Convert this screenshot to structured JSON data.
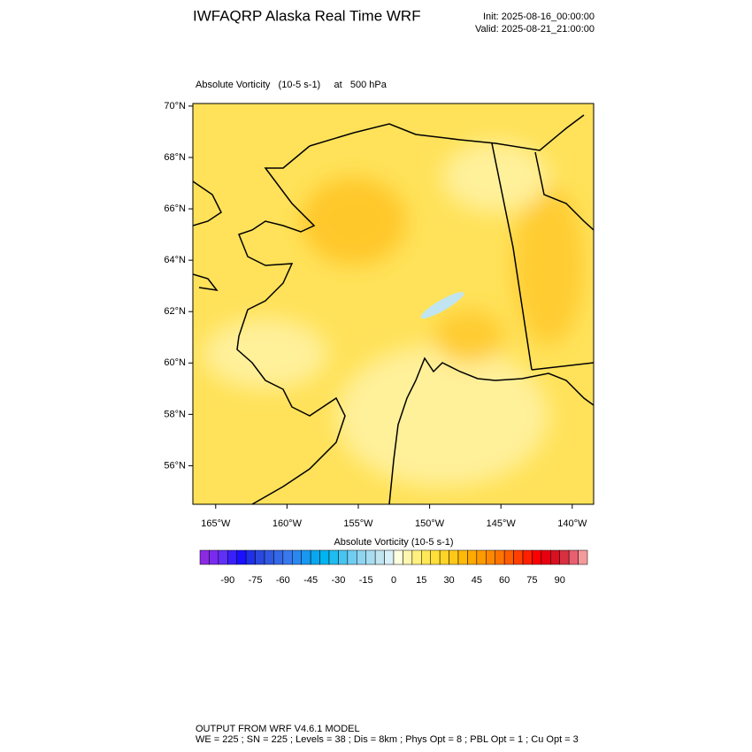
{
  "header": {
    "title": "IWFAQRP Alaska Real Time WRF",
    "init": "Init: 2025-08-16_00:00:00",
    "valid": "Valid: 2025-08-21_21:00:00"
  },
  "map": {
    "subtitle": "Absolute Vorticity   (10-5 s-1)     at   500 hPa",
    "lat_lim": [
      54.5,
      70.1
    ],
    "lon_lim": [
      -166.6,
      -138.5
    ],
    "lat_ticks": [
      {
        "value": 70,
        "label": "70°N"
      },
      {
        "value": 68,
        "label": "68°N"
      },
      {
        "value": 66,
        "label": "66°N"
      },
      {
        "value": 64,
        "label": "64°N"
      },
      {
        "value": 62,
        "label": "62°N"
      },
      {
        "value": 60,
        "label": "60°N"
      },
      {
        "value": 58,
        "label": "58°N"
      },
      {
        "value": 56,
        "label": "56°N"
      }
    ],
    "lon_ticks": [
      {
        "value": -165,
        "label": "165°W"
      },
      {
        "value": -160,
        "label": "160°W"
      },
      {
        "value": -155,
        "label": "155°W"
      },
      {
        "value": -150,
        "label": "150°W"
      },
      {
        "value": -145,
        "label": "145°W"
      },
      {
        "value": -140,
        "label": "140°W"
      }
    ]
  },
  "colorbar": {
    "title": "Absolute Vorticity  (10-5 s-1)",
    "lim": [
      -105,
      105
    ],
    "ticks": [
      -90,
      -75,
      -60,
      -45,
      -30,
      -15,
      0,
      15,
      30,
      45,
      60,
      75,
      90
    ],
    "colors": [
      "#8a2be2",
      "#7a2af0",
      "#6030f5",
      "#3a20f8",
      "#1a10ff",
      "#2030e8",
      "#2a48e0",
      "#3058e0",
      "#3468e6",
      "#3a78ee",
      "#2a88f0",
      "#1898f0",
      "#08a8f0",
      "#00b4f0",
      "#20bcf0",
      "#48c4f0",
      "#70ccf0",
      "#90d4f0",
      "#a8dcf0",
      "#c0e4f0",
      "#d8f0f8",
      "#fffde0",
      "#fff6b0",
      "#fff080",
      "#ffe858",
      "#ffdf38",
      "#ffd428",
      "#ffc818",
      "#ffba08",
      "#ffaa00",
      "#ff9a00",
      "#ff8800",
      "#ff7400",
      "#ff5c00",
      "#ff4000",
      "#ff2000",
      "#ff0000",
      "#e80010",
      "#d81020",
      "#d83040",
      "#e86070",
      "#f49a9a"
    ]
  },
  "footer": {
    "line1": "OUTPUT FROM WRF V4.6.1 MODEL",
    "line2": "WE = 225 ; SN = 225 ; Levels = 38 ; Dis = 8km ; Phys Opt = 8 ; PBL Opt = 1 ; Cu Opt = 3"
  }
}
